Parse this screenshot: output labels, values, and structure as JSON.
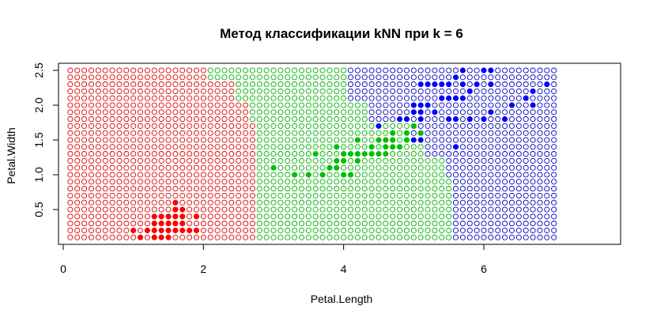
{
  "chart_data": {
    "type": "scatter",
    "title": "Метод классификации kNN при k = 6",
    "xlabel": "Petal.Length",
    "ylabel": "Petal.Width",
    "xlim": [
      0,
      7.8
    ],
    "ylim": [
      0,
      2.6
    ],
    "x_ticks": [
      0,
      2,
      4,
      6
    ],
    "x_tick_labels": [
      "0",
      "2",
      "4",
      "6"
    ],
    "y_ticks": [
      0.5,
      1.0,
      1.5,
      2.0,
      2.5
    ],
    "y_tick_labels": [
      "0.5",
      "1.0",
      "1.5",
      "2.0",
      "2.5"
    ],
    "grid": false,
    "legend": "none",
    "colors": {
      "setosa": "#ff0000",
      "versicolor": "#00c000",
      "virginica": "#0000ff",
      "setosa_grid": "#e00000",
      "versicolor_grid": "#00b000",
      "virginica_grid": "#0000c0"
    },
    "classification_grid": {
      "x_start": 0.1,
      "x_end": 7.0,
      "x_step": 0.1,
      "y_start": 0.1,
      "y_end": 2.5,
      "y_step": 0.1,
      "boundaries_setosa_versicolor": [
        {
          "y_max": 1.7,
          "x": 2.8
        },
        {
          "y_max": 2.0,
          "x": 2.7
        },
        {
          "y_max": 2.3,
          "x": 2.5
        },
        {
          "y_max": 2.6,
          "x": 2.1
        }
      ],
      "boundaries_versicolor_virginica": [
        {
          "y_max": 0.9,
          "x": 5.6
        },
        {
          "y_max": 1.2,
          "x": 5.5
        },
        {
          "y_max": 1.5,
          "x": 5.2
        },
        {
          "y_max": 1.7,
          "x": 5.0
        },
        {
          "y_max": 2.0,
          "x": 4.4
        },
        {
          "y_max": 2.6,
          "x": 4.1
        }
      ]
    },
    "series": [
      {
        "name": "setosa",
        "points": [
          [
            1.1,
            0.1
          ],
          [
            1.2,
            0.2
          ],
          [
            1.3,
            0.2
          ],
          [
            1.4,
            0.2
          ],
          [
            1.5,
            0.2
          ],
          [
            1.6,
            0.2
          ],
          [
            1.7,
            0.2
          ],
          [
            1.8,
            0.2
          ],
          [
            1.9,
            0.2
          ],
          [
            1.3,
            0.1
          ],
          [
            1.4,
            0.1
          ],
          [
            1.5,
            0.1
          ],
          [
            1.0,
            0.2
          ],
          [
            1.3,
            0.3
          ],
          [
            1.4,
            0.3
          ],
          [
            1.5,
            0.3
          ],
          [
            1.6,
            0.3
          ],
          [
            1.7,
            0.3
          ],
          [
            1.3,
            0.4
          ],
          [
            1.4,
            0.4
          ],
          [
            1.5,
            0.4
          ],
          [
            1.6,
            0.4
          ],
          [
            1.7,
            0.4
          ],
          [
            1.9,
            0.4
          ],
          [
            1.6,
            0.5
          ],
          [
            1.7,
            0.5
          ],
          [
            1.6,
            0.6
          ]
        ]
      },
      {
        "name": "versicolor",
        "points": [
          [
            3.0,
            1.1
          ],
          [
            3.3,
            1.0
          ],
          [
            3.5,
            1.0
          ],
          [
            3.6,
            1.3
          ],
          [
            3.7,
            1.0
          ],
          [
            3.8,
            1.1
          ],
          [
            3.9,
            1.1
          ],
          [
            3.9,
            1.2
          ],
          [
            3.9,
            1.4
          ],
          [
            4.0,
            1.0
          ],
          [
            4.0,
            1.2
          ],
          [
            4.0,
            1.3
          ],
          [
            4.1,
            1.0
          ],
          [
            4.1,
            1.3
          ],
          [
            4.2,
            1.2
          ],
          [
            4.2,
            1.3
          ],
          [
            4.2,
            1.5
          ],
          [
            4.3,
            1.3
          ],
          [
            4.4,
            1.3
          ],
          [
            4.4,
            1.4
          ],
          [
            4.5,
            1.3
          ],
          [
            4.5,
            1.5
          ],
          [
            4.6,
            1.3
          ],
          [
            4.6,
            1.4
          ],
          [
            4.6,
            1.5
          ],
          [
            4.7,
            1.4
          ],
          [
            4.7,
            1.5
          ],
          [
            4.7,
            1.6
          ],
          [
            4.8,
            1.4
          ],
          [
            4.8,
            1.8
          ],
          [
            4.9,
            1.5
          ],
          [
            4.9,
            1.6
          ],
          [
            5.0,
            1.7
          ],
          [
            5.1,
            1.6
          ]
        ]
      },
      {
        "name": "virginica",
        "points": [
          [
            4.5,
            1.7
          ],
          [
            4.8,
            1.8
          ],
          [
            4.9,
            1.8
          ],
          [
            5.0,
            1.5
          ],
          [
            5.0,
            1.9
          ],
          [
            5.0,
            2.0
          ],
          [
            5.1,
            1.5
          ],
          [
            5.1,
            1.8
          ],
          [
            5.1,
            1.9
          ],
          [
            5.1,
            2.0
          ],
          [
            5.1,
            2.3
          ],
          [
            5.2,
            2.0
          ],
          [
            5.2,
            2.3
          ],
          [
            5.3,
            1.9
          ],
          [
            5.3,
            2.3
          ],
          [
            5.4,
            2.1
          ],
          [
            5.4,
            2.3
          ],
          [
            5.5,
            1.8
          ],
          [
            5.5,
            2.1
          ],
          [
            5.5,
            2.3
          ],
          [
            5.6,
            1.4
          ],
          [
            5.6,
            1.8
          ],
          [
            5.6,
            2.1
          ],
          [
            5.6,
            2.4
          ],
          [
            5.7,
            2.1
          ],
          [
            5.7,
            2.3
          ],
          [
            5.7,
            2.5
          ],
          [
            5.8,
            1.8
          ],
          [
            5.8,
            2.2
          ],
          [
            5.9,
            2.3
          ],
          [
            6.0,
            1.8
          ],
          [
            6.0,
            2.5
          ],
          [
            6.1,
            1.9
          ],
          [
            6.1,
            2.3
          ],
          [
            6.1,
            2.5
          ],
          [
            6.3,
            1.8
          ],
          [
            6.4,
            2.0
          ],
          [
            6.6,
            2.1
          ],
          [
            6.7,
            2.2
          ],
          [
            6.7,
            2.0
          ],
          [
            6.9,
            2.3
          ]
        ]
      }
    ]
  }
}
